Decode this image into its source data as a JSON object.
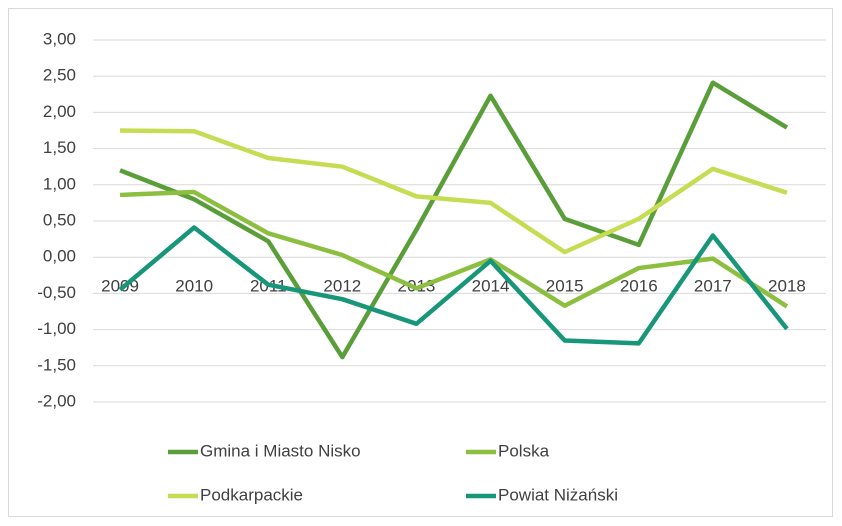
{
  "chart_data": {
    "type": "line",
    "categories": [
      "2009",
      "2010",
      "2011",
      "2012",
      "2013",
      "2014",
      "2015",
      "2016",
      "2017",
      "2018"
    ],
    "series": [
      {
        "name": "Gmina i Miasto Nisko",
        "color": "#5a9e3a",
        "values": [
          1.2,
          0.8,
          0.22,
          -1.38,
          0.38,
          2.23,
          0.53,
          0.17,
          2.41,
          1.79
        ]
      },
      {
        "name": "Polska",
        "color": "#8cbf3f",
        "values": [
          0.86,
          0.9,
          0.33,
          0.03,
          -0.43,
          -0.03,
          -0.67,
          -0.15,
          -0.02,
          -0.68
        ]
      },
      {
        "name": "Podkarpackie",
        "color": "#c6dc52",
        "values": [
          1.75,
          1.74,
          1.37,
          1.25,
          0.84,
          0.75,
          0.07,
          0.53,
          1.22,
          0.89
        ]
      },
      {
        "name": "Powiat Niżański",
        "color": "#17967a",
        "values": [
          -0.45,
          0.41,
          -0.38,
          -0.58,
          -0.92,
          -0.05,
          -1.15,
          -1.19,
          0.3,
          -0.99
        ]
      }
    ],
    "ylim": [
      -2,
      3
    ],
    "yticks": [
      {
        "value": -2,
        "label": "-2,00"
      },
      {
        "value": -1.5,
        "label": "-1,50"
      },
      {
        "value": -1,
        "label": "-1,00"
      },
      {
        "value": -0.5,
        "label": "-0,50"
      },
      {
        "value": 0,
        "label": "0,00"
      },
      {
        "value": 0.5,
        "label": "0,50"
      },
      {
        "value": 1,
        "label": "1,00"
      },
      {
        "value": 1.5,
        "label": "1,50"
      },
      {
        "value": 2,
        "label": "2,00"
      },
      {
        "value": 2.5,
        "label": "2,50"
      },
      {
        "value": 3,
        "label": "3,00"
      }
    ],
    "grid": true,
    "legend": "bottom"
  }
}
